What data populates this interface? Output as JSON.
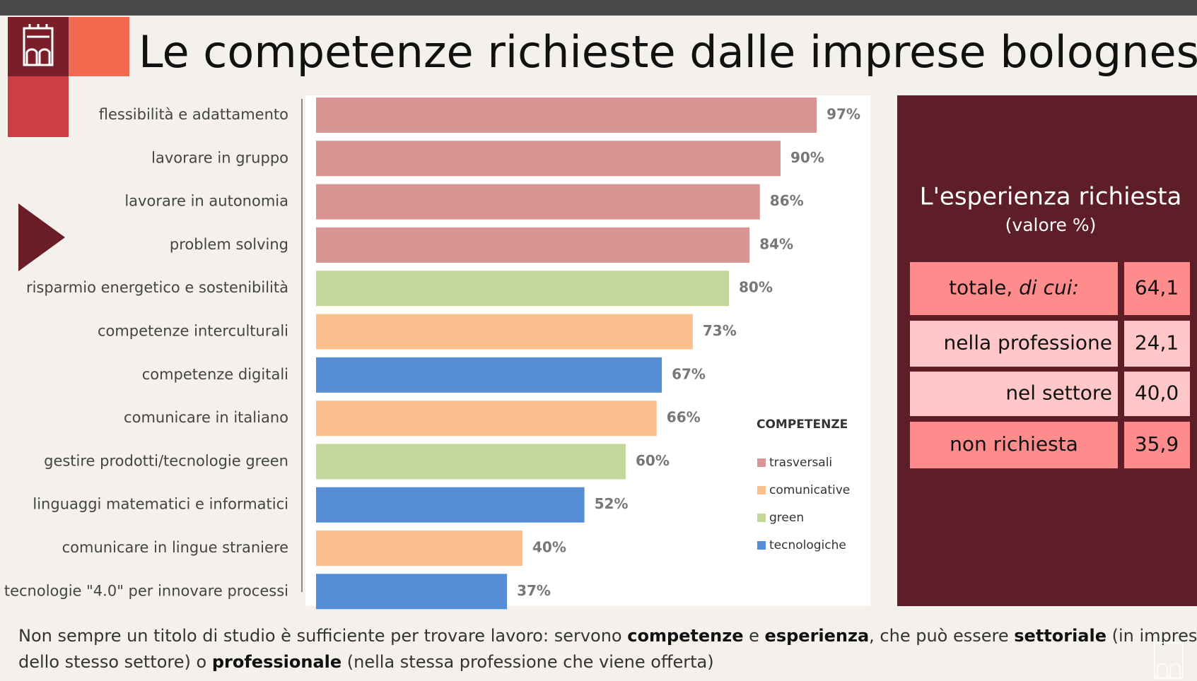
{
  "header": {
    "title": "Le competenze richieste dalle imprese bolognesi"
  },
  "chart_data": {
    "type": "bar",
    "categories": [
      "flessibilità e adattamento",
      "lavorare in gruppo",
      "lavorare in autonomia",
      "problem solving",
      "risparmio energetico e sostenibilità",
      "competenze interculturali",
      "competenze digitali",
      "comunicare in italiano",
      "gestire prodotti/tecnologie green",
      "linguaggi matematici e informatici",
      "comunicare in lingue straniere",
      "tecnologie \"4.0\" per innovare processi"
    ],
    "values": [
      97,
      90,
      86,
      84,
      80,
      73,
      67,
      66,
      60,
      52,
      40,
      37
    ],
    "value_labels": [
      "97%",
      "90%",
      "86%",
      "84%",
      "80%",
      "73%",
      "67%",
      "66%",
      "60%",
      "52%",
      "40%",
      "37%"
    ],
    "bar_colors": [
      "#d99594",
      "#d99594",
      "#d99594",
      "#d99594",
      "#c4d79b",
      "#fac090",
      "#558ed5",
      "#fac090",
      "#c4d79b",
      "#558ed5",
      "#fac090",
      "#558ed5"
    ],
    "xlim": [
      0,
      100
    ],
    "legend": {
      "title": "COMPETENZE",
      "entries": [
        {
          "name": "trasversali",
          "color": "#d99594"
        },
        {
          "name": "comunicative",
          "color": "#fac090"
        },
        {
          "name": "green",
          "color": "#c4d79b"
        },
        {
          "name": "tecnologiche",
          "color": "#558ed5"
        }
      ]
    }
  },
  "panel": {
    "title": "L'esperienza richiesta",
    "subtitle": "(valore %)",
    "rows": [
      {
        "label": [
          "totale, ",
          "di cui:"
        ],
        "value": "64,1"
      },
      {
        "label": [
          "nella professione"
        ],
        "value": "24,1"
      },
      {
        "label": [
          "nel settore"
        ],
        "value": "40,0"
      },
      {
        "label": [
          "non richiesta"
        ],
        "value": "35,9"
      }
    ]
  },
  "footer": {
    "lines": [
      [
        {
          "text": "Non sempre un titolo di studio è sufficiente per trovare lavoro: servono ",
          "bold": false
        },
        {
          "text": "competenze",
          "bold": true
        },
        {
          "text": " e ",
          "bold": false
        },
        {
          "text": "esperienza",
          "bold": true
        },
        {
          "text": ", che può essere ",
          "bold": false
        },
        {
          "text": "settoriale",
          "bold": true
        },
        {
          "text": " (in imprese",
          "bold": false
        }
      ],
      [
        {
          "text": "dello stesso settore) o ",
          "bold": false
        },
        {
          "text": "professionale",
          "bold": true
        },
        {
          "text": " (nella stessa professione che viene offerta)",
          "bold": false
        }
      ]
    ]
  }
}
